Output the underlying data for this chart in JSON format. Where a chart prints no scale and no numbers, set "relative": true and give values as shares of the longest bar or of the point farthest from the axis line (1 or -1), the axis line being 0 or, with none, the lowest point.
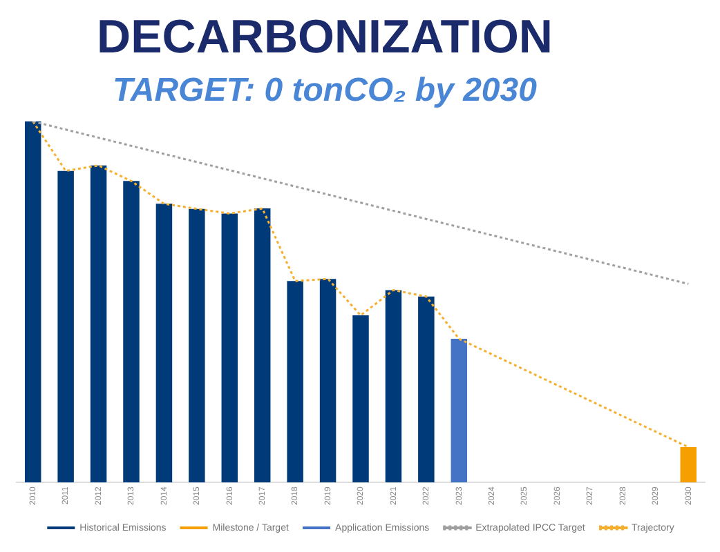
{
  "chart_data": {
    "type": "bar",
    "title": "DECARBONIZATION",
    "subtitle": "TARGET: 0 tonCO₂ by 2030",
    "relative": true,
    "legend": "bottom",
    "grid": false,
    "categories": [
      "2010",
      "2011",
      "2012",
      "2013",
      "2014",
      "2015",
      "2016",
      "2017",
      "2018",
      "2019",
      "2020",
      "2021",
      "2022",
      "2023",
      "2024",
      "2025",
      "2026",
      "2027",
      "2028",
      "2029",
      "2030"
    ],
    "series": [
      {
        "name": "Historical Emissions",
        "color": "#003a78",
        "values": [
          1,
          0.863,
          0.878,
          0.835,
          0.772,
          0.758,
          0.745,
          0.759,
          0.558,
          0.564,
          0.463,
          0.533,
          0.515,
          null,
          null,
          null,
          null,
          null,
          null,
          null,
          null
        ]
      },
      {
        "name": "Milestone / Target",
        "color": "#f5a000",
        "values": [
          null,
          null,
          null,
          null,
          null,
          null,
          null,
          null,
          null,
          null,
          null,
          null,
          null,
          null,
          null,
          null,
          null,
          null,
          null,
          null,
          0.098
        ]
      },
      {
        "name": "Application Emissions",
        "color": "#4472c4",
        "values": [
          null,
          null,
          null,
          null,
          null,
          null,
          null,
          null,
          null,
          null,
          null,
          null,
          null,
          0.398,
          null,
          null,
          null,
          null,
          null,
          null,
          null
        ]
      },
      {
        "name": "Extrapolated IPCC Target",
        "type": "line",
        "line_style": "dotted",
        "marker": "none",
        "color": "#a0a0a0",
        "values": [
          1,
          null,
          null,
          null,
          null,
          null,
          null,
          null,
          null,
          null,
          null,
          null,
          null,
          null,
          null,
          null,
          null,
          null,
          null,
          null,
          0.55
        ]
      },
      {
        "name": "Trajectory",
        "type": "line",
        "line_style": "dotted",
        "marker": "none",
        "color": "#f5b030",
        "values": [
          1,
          0.863,
          0.878,
          0.835,
          0.772,
          0.758,
          0.745,
          0.759,
          0.558,
          0.564,
          0.463,
          0.533,
          0.515,
          0.398,
          null,
          null,
          null,
          null,
          null,
          null,
          0.098
        ]
      }
    ]
  }
}
